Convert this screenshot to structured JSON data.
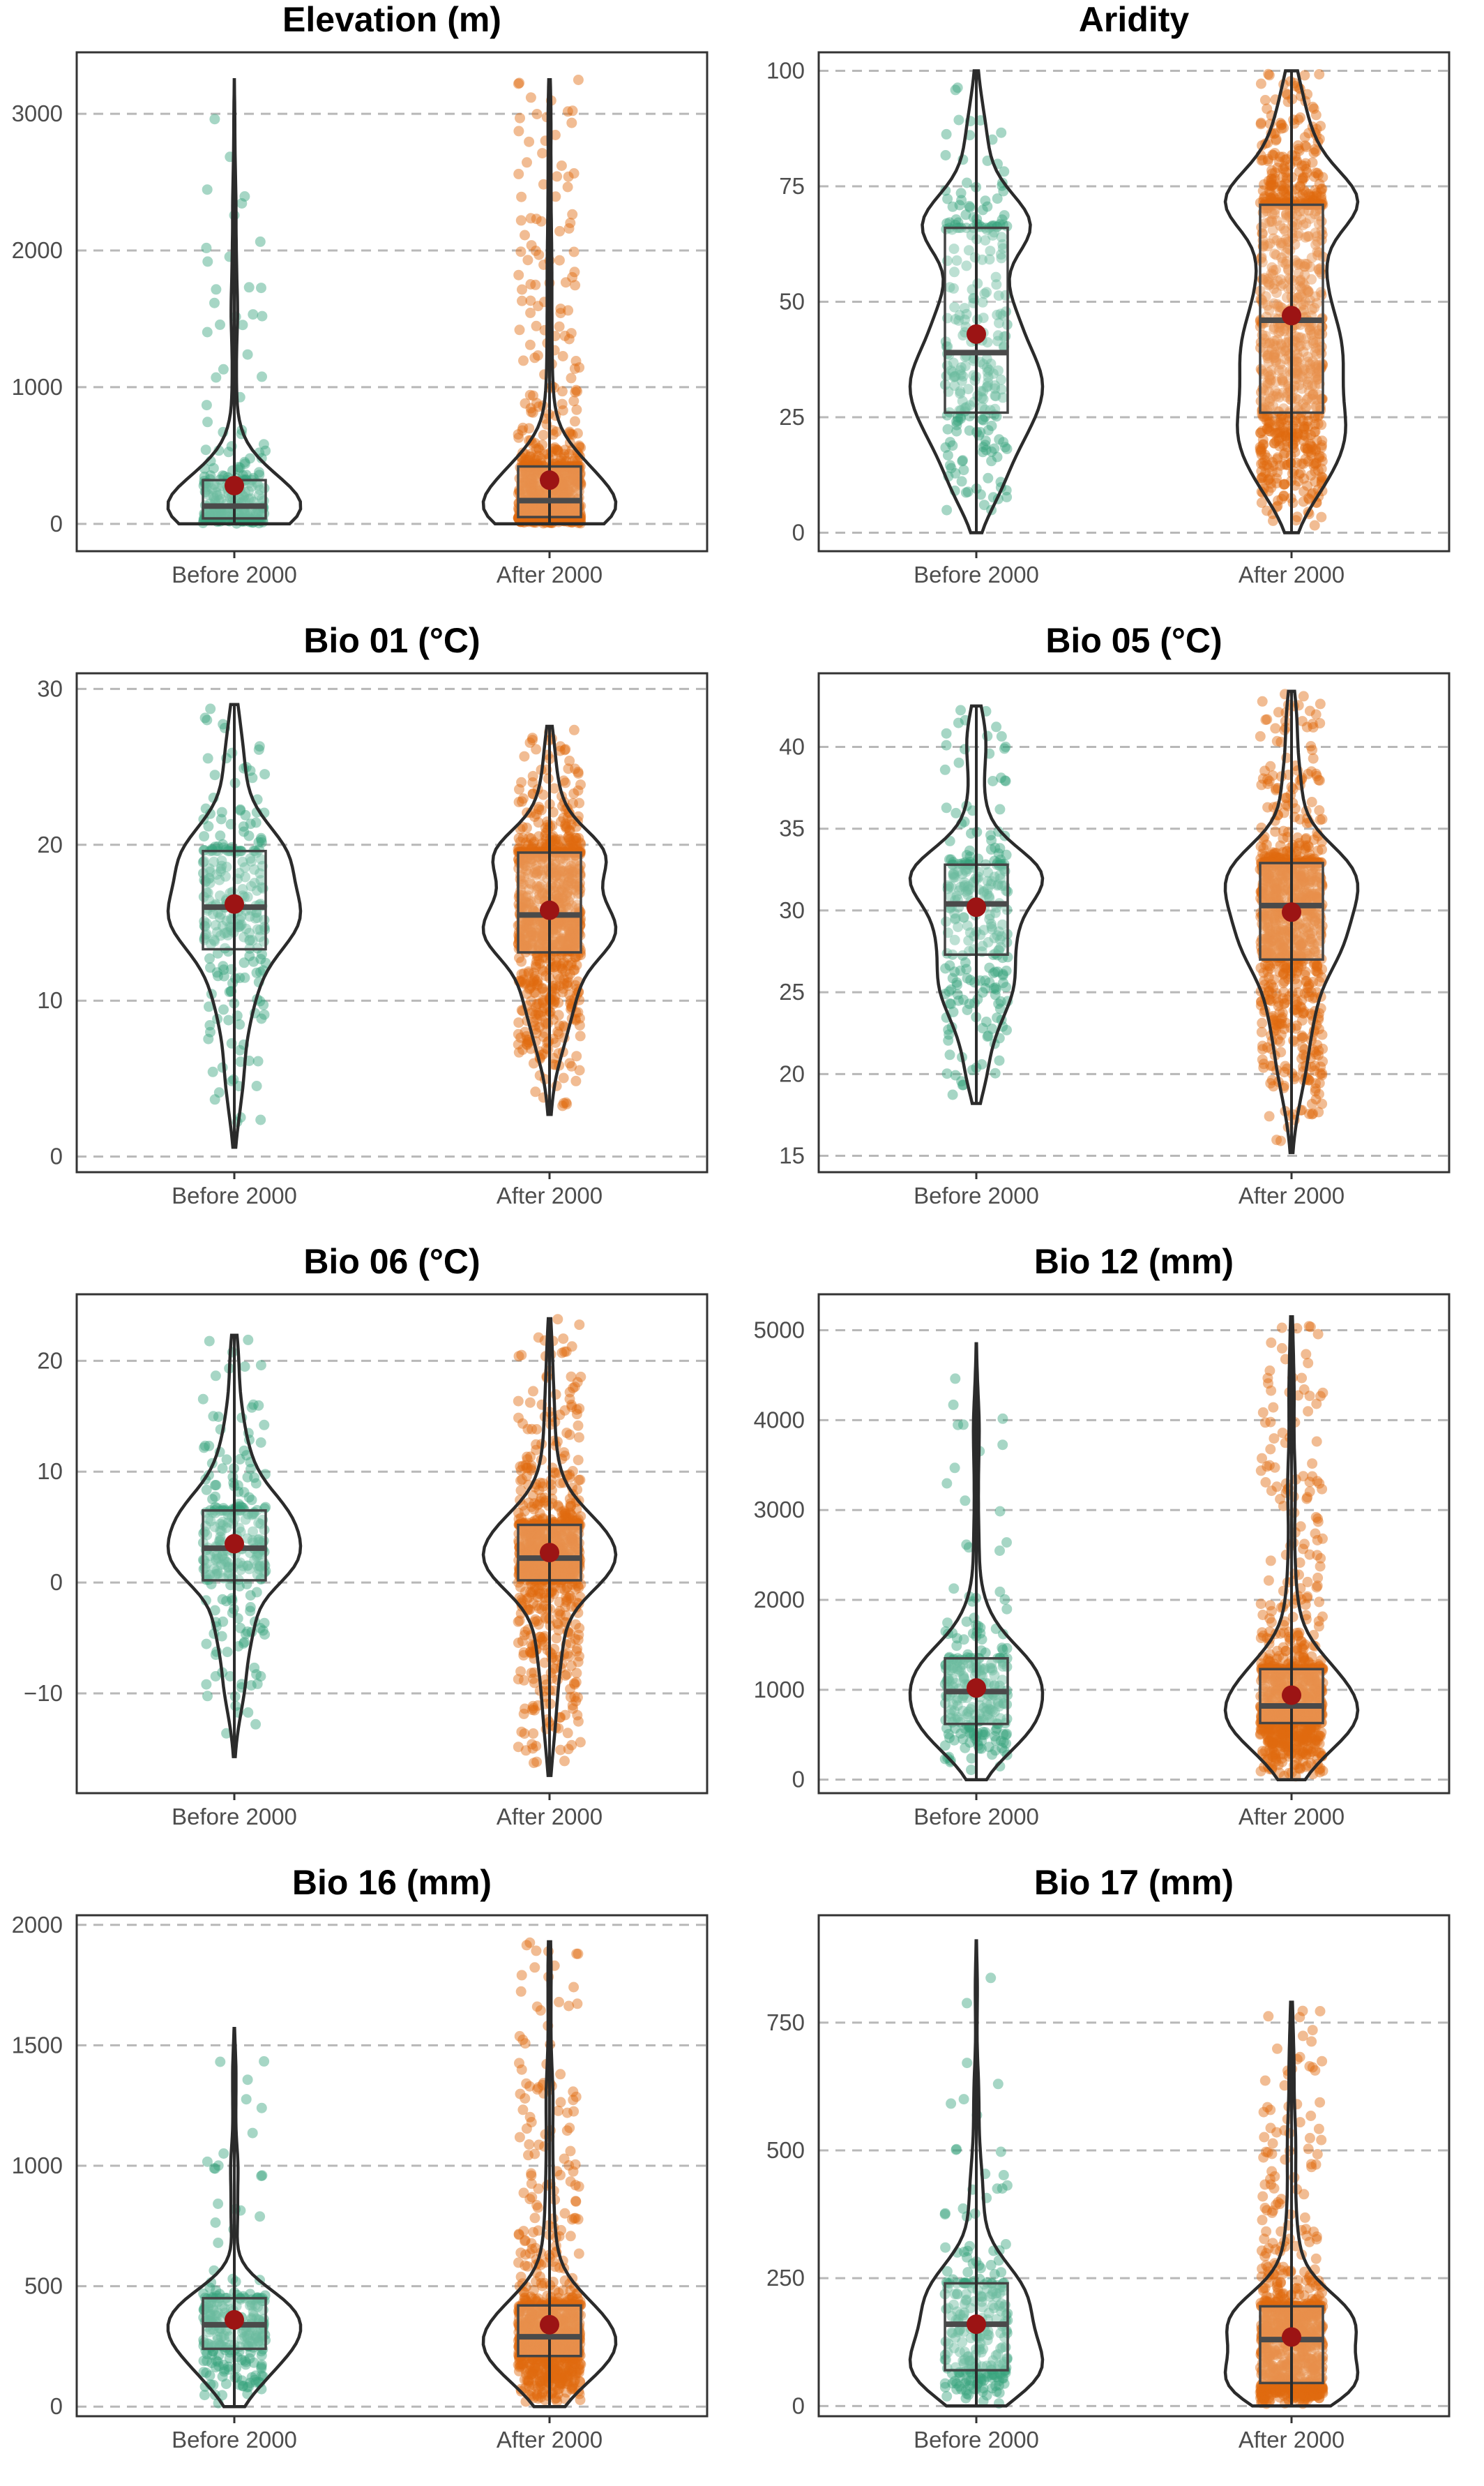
{
  "colors": {
    "before": "#3aa57f",
    "after": "#e06a10",
    "mean_marker": "#9c1414",
    "grid": "#b8b8b8"
  },
  "chart_data": [
    {
      "type": "violin",
      "title": "Elevation (m)",
      "categories": [
        "Before 2000",
        "After 2000"
      ],
      "ylim": [
        -200,
        3450
      ],
      "yticks": [
        0,
        1000,
        2000,
        3000
      ],
      "series": [
        {
          "min": 0,
          "q1": 40,
          "median": 130,
          "q3": 320,
          "max": 3250,
          "mean": 280
        },
        {
          "min": 0,
          "q1": 50,
          "median": 170,
          "q3": 420,
          "max": 3250,
          "mean": 320
        }
      ]
    },
    {
      "type": "violin",
      "title": "Aridity",
      "categories": [
        "Before 2000",
        "After 2000"
      ],
      "ylim": [
        -4,
        104
      ],
      "yticks": [
        0,
        25,
        50,
        75,
        100
      ],
      "series": [
        {
          "min": 0,
          "q1": 26,
          "median": 39,
          "q3": 66,
          "max": 100,
          "mean": 43
        },
        {
          "min": 0,
          "q1": 26,
          "median": 46,
          "q3": 71,
          "max": 100,
          "mean": 47
        }
      ]
    },
    {
      "type": "violin",
      "title": "Bio 01 (°C)",
      "categories": [
        "Before 2000",
        "After 2000"
      ],
      "ylim": [
        -1,
        31
      ],
      "yticks": [
        0,
        10,
        20,
        30
      ],
      "series": [
        {
          "min": 0.6,
          "q1": 13.3,
          "median": 16.0,
          "q3": 19.6,
          "max": 29.0,
          "mean": 16.2
        },
        {
          "min": 2.7,
          "q1": 13.1,
          "median": 15.5,
          "q3": 19.5,
          "max": 27.6,
          "mean": 15.8
        }
      ]
    },
    {
      "type": "violin",
      "title": "Bio 05 (°C)",
      "categories": [
        "Before 2000",
        "After 2000"
      ],
      "ylim": [
        14,
        44.5
      ],
      "yticks": [
        15,
        20,
        25,
        30,
        35,
        40
      ],
      "series": [
        {
          "min": 18.2,
          "q1": 27.3,
          "median": 30.4,
          "q3": 32.8,
          "max": 42.5,
          "mean": 30.2
        },
        {
          "min": 15.2,
          "q1": 27.0,
          "median": 30.3,
          "q3": 32.9,
          "max": 43.4,
          "mean": 29.9
        }
      ]
    },
    {
      "type": "violin",
      "title": "Bio 06 (°C)",
      "categories": [
        "Before 2000",
        "After 2000"
      ],
      "ylim": [
        -19,
        26
      ],
      "yticks": [
        -10,
        0,
        10,
        20
      ],
      "series": [
        {
          "min": -15.7,
          "q1": 0.2,
          "median": 3.1,
          "q3": 6.5,
          "max": 22.3,
          "mean": 3.5
        },
        {
          "min": -17.4,
          "q1": 0.2,
          "median": 2.2,
          "q3": 5.2,
          "max": 23.8,
          "mean": 2.7
        }
      ]
    },
    {
      "type": "violin",
      "title": "Bio 12 (mm)",
      "categories": [
        "Before 2000",
        "After 2000"
      ],
      "ylim": [
        -150,
        5400
      ],
      "yticks": [
        0,
        1000,
        2000,
        3000,
        4000,
        5000
      ],
      "series": [
        {
          "min": 0,
          "q1": 620,
          "median": 980,
          "q3": 1350,
          "max": 4850,
          "mean": 1020
        },
        {
          "min": 0,
          "q1": 630,
          "median": 820,
          "q3": 1230,
          "max": 5150,
          "mean": 940
        }
      ]
    },
    {
      "type": "violin",
      "title": "Bio 16 (mm)",
      "categories": [
        "Before 2000",
        "After 2000"
      ],
      "ylim": [
        -40,
        2040
      ],
      "yticks": [
        0,
        500,
        1000,
        1500,
        2000
      ],
      "series": [
        {
          "min": 0,
          "q1": 240,
          "median": 340,
          "q3": 450,
          "max": 1570,
          "mean": 360
        },
        {
          "min": 0,
          "q1": 210,
          "median": 290,
          "q3": 420,
          "max": 1930,
          "mean": 340
        }
      ]
    },
    {
      "type": "violin",
      "title": "Bio 17 (mm)",
      "categories": [
        "Before 2000",
        "After 2000"
      ],
      "ylim": [
        -20,
        960
      ],
      "yticks": [
        0,
        250,
        500,
        750
      ],
      "series": [
        {
          "min": 0,
          "q1": 70,
          "median": 160,
          "q3": 240,
          "max": 910,
          "mean": 160
        },
        {
          "min": 0,
          "q1": 45,
          "median": 130,
          "q3": 195,
          "max": 790,
          "mean": 135
        }
      ]
    }
  ]
}
